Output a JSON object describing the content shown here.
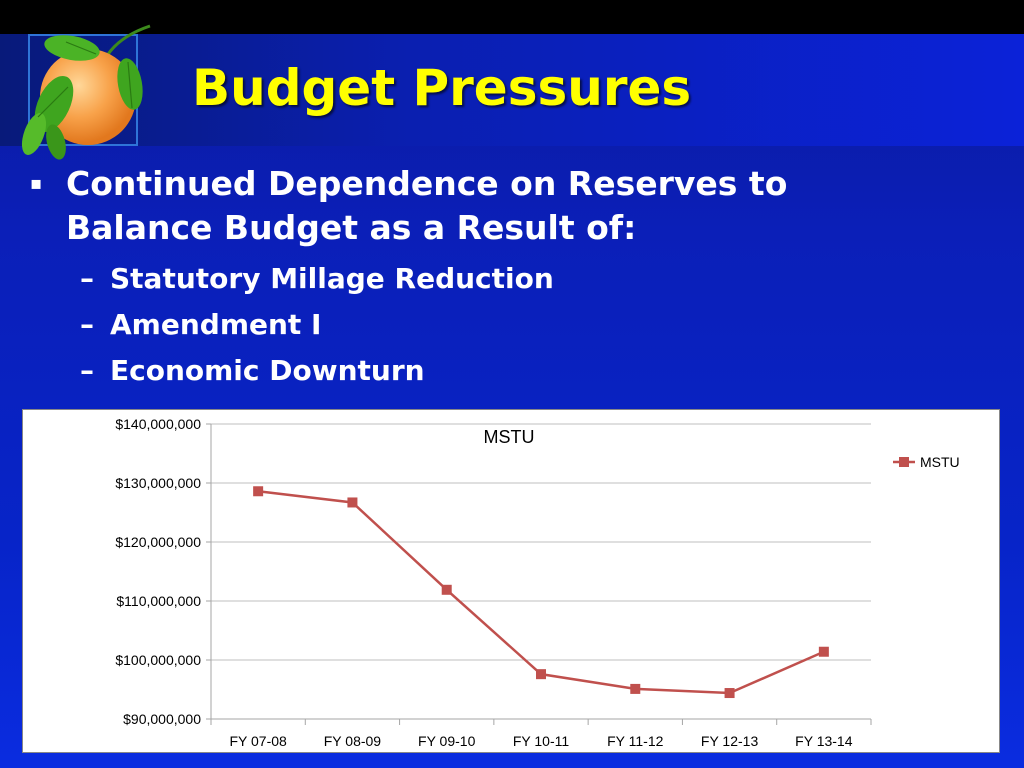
{
  "slide": {
    "title": "Budget Pressures",
    "bullet_main": "Continued Dependence on Reserves to Balance Budget as a Result of:",
    "sub_bullets": [
      "Statutory Millage Reduction",
      "Amendment I",
      "Economic Downturn"
    ],
    "colors": {
      "title": "#ffff00",
      "background": "#0b22c8",
      "text": "#ffffff"
    }
  },
  "chart_data": {
    "type": "line",
    "title": "MSTU",
    "categories": [
      "FY 07-08",
      "FY 08-09",
      "FY 09-10",
      "FY 10-11",
      "FY 11-12",
      "FY 12-13",
      "FY 13-14"
    ],
    "series": [
      {
        "name": "MSTU",
        "color": "#c0504d",
        "values": [
          128600000,
          126700000,
          111900000,
          97600000,
          95100000,
          94400000,
          101400000
        ]
      }
    ],
    "ylim": [
      90000000,
      140000000
    ],
    "yticks": [
      90000000,
      100000000,
      110000000,
      120000000,
      130000000,
      140000000
    ],
    "ytick_labels": [
      "$90,000,000",
      "$100,000,000",
      "$110,000,000",
      "$120,000,000",
      "$130,000,000",
      "$140,000,000"
    ],
    "grid": true,
    "legend": "right"
  }
}
